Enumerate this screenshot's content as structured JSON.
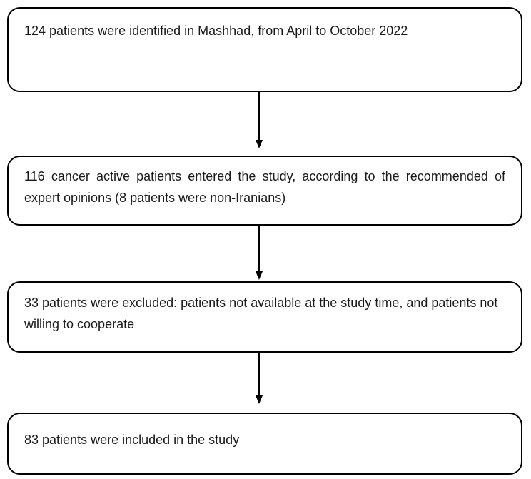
{
  "flowchart": {
    "boxes": [
      {
        "text": "124 patients were identified in Mashhad, from April to October 2022"
      },
      {
        "text": "116 cancer active patients entered the study, according to the recommended of expert opinions (8 patients were non-Iranians)"
      },
      {
        "text": "33 patients were excluded: patients not available at the study time, and patients not willing to cooperate"
      },
      {
        "text": "83 patients were included in the study"
      }
    ],
    "colors": {
      "border-color": "#000000",
      "bg-color": "#ffffff",
      "text-color": "#1a1a1a"
    }
  }
}
